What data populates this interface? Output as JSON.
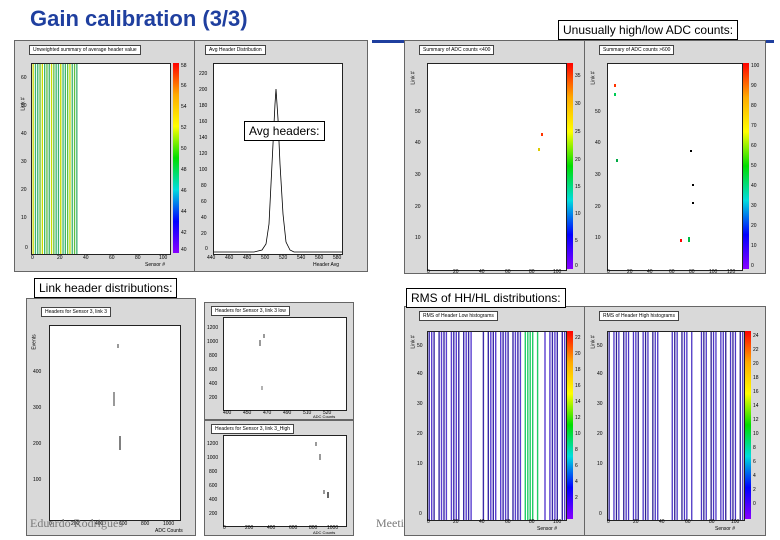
{
  "title": "Gain calibration (3/3)",
  "callouts": {
    "unusual": "Unusually high/low ADC counts:",
    "avg": "Avg headers:",
    "link": "Link header distributions:",
    "rms": "RMS of HH/HL distributions:"
  },
  "footer": {
    "author": "Eduardo Rodrigues",
    "meeting": "Meeti"
  },
  "colors": {
    "title": "#1f3f9f",
    "bar": "#3cb371"
  },
  "panels": {
    "unweighted": {
      "title": "Unweighted summary of average header value",
      "xticks": [
        "0",
        "20",
        "40",
        "60",
        "80",
        "100"
      ],
      "yticks": [
        "0",
        "10",
        "20",
        "30",
        "40",
        "50",
        "60"
      ],
      "y_axis_label": "Link #",
      "x_axis_label": "Sensor #",
      "palette": [
        "58",
        "56",
        "54",
        "52",
        "50",
        "48",
        "46",
        "44",
        "42",
        "40"
      ]
    },
    "avg_dist": {
      "title": "Avg Header Distribution",
      "xticks": [
        "440",
        "460",
        "480",
        "500",
        "520",
        "540",
        "560",
        "580"
      ],
      "yticks": [
        "0",
        "20",
        "40",
        "60",
        "80",
        "100",
        "120",
        "140",
        "160",
        "180",
        "200",
        "220"
      ],
      "x_axis_label": "Header Avg"
    },
    "adc_low": {
      "title": "Summary of ADC counts <400",
      "xticks": [
        "0",
        "20",
        "40",
        "60",
        "80",
        "100"
      ],
      "yticks": [
        "0",
        "10",
        "20",
        "30",
        "40",
        "50",
        "60"
      ],
      "y_axis_label": "Link #",
      "x_axis_label": "Sensor #",
      "palette": [
        "35",
        "30",
        "25",
        "20",
        "15",
        "10",
        "5",
        "0"
      ]
    },
    "adc_high": {
      "title": "Summary of ADC counts >600",
      "xticks": [
        "0",
        "20",
        "40",
        "60",
        "80",
        "100",
        "120"
      ],
      "yticks": [
        "0",
        "10",
        "20",
        "30",
        "40",
        "50",
        "60"
      ],
      "y_axis_label": "Link #",
      "x_axis_label": "Sensor #",
      "palette": [
        "100",
        "90",
        "80",
        "70",
        "60",
        "50",
        "40",
        "30",
        "20",
        "10",
        "0"
      ]
    },
    "link3": {
      "title": "Headers for Sensor 3, link 3",
      "xticks": [
        "0",
        "200",
        "400",
        "600",
        "800",
        "1000"
      ],
      "yticks": [
        "100",
        "200",
        "300",
        "400"
      ],
      "y_axis_label": "Events",
      "x_axis_label": "ADC Counts"
    },
    "link3_low": {
      "title": "Headers for Sensor 3, link 3 low",
      "xticks": [
        "400",
        "450",
        "470",
        "490",
        "510",
        "520"
      ],
      "yticks": [
        "200",
        "400",
        "600",
        "800",
        "1000",
        "1200"
      ],
      "x_axis_label": "ADC Counts"
    },
    "link3_high": {
      "title": "Headers for Sensor 3, link 3_High",
      "xticks": [
        "0",
        "200",
        "400",
        "600",
        "800",
        "1000"
      ],
      "yticks": [
        "200",
        "400",
        "600",
        "800",
        "1000",
        "1200"
      ],
      "x_axis_label": "ADC Counts"
    },
    "rms_low": {
      "title": "RMS of Header Low histograms",
      "xticks": [
        "0",
        "20",
        "40",
        "60",
        "80",
        "100"
      ],
      "yticks": [
        "0",
        "10",
        "20",
        "30",
        "40",
        "50",
        "60"
      ],
      "y_axis_label": "Link #",
      "x_axis_label": "Sensor #",
      "palette": [
        "22",
        "20",
        "18",
        "16",
        "14",
        "12",
        "10",
        "8",
        "6",
        "4",
        "2"
      ]
    },
    "rms_high": {
      "title": "RMS of Header High histograms",
      "xticks": [
        "0",
        "20",
        "40",
        "60",
        "80",
        "100"
      ],
      "yticks": [
        "0",
        "10",
        "20",
        "30",
        "40",
        "50",
        "60"
      ],
      "y_axis_label": "Link #",
      "x_axis_label": "Sensor #",
      "palette": [
        "24",
        "22",
        "20",
        "18",
        "16",
        "14",
        "12",
        "10",
        "8",
        "6",
        "4",
        "2",
        "0"
      ]
    }
  }
}
